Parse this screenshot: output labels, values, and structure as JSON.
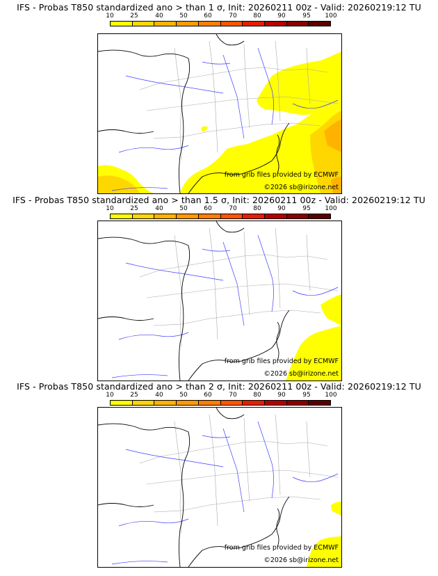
{
  "scale": {
    "labels": [
      "10",
      "25",
      "40",
      "50",
      "60",
      "70",
      "80",
      "90",
      "95",
      "100"
    ],
    "colors": [
      "#ffff00",
      "#ffd700",
      "#ffb300",
      "#ff9a00",
      "#ff7f00",
      "#ff5500",
      "#e61e00",
      "#b40000",
      "#8a0000",
      "#5a0000"
    ]
  },
  "map_colors": {
    "yellow": "#ffff00",
    "gold": "#ffd700",
    "orange": "#ffb300",
    "rivers": "#3d3dff",
    "borders": "#a9a9a9",
    "coast": "#000000"
  },
  "credits": {
    "source": "from grib files provided by ECMWF",
    "copyright": "©2026 sb@irizone.net"
  },
  "panels": [
    {
      "title": "IFS - Probas T850  standardized ano > than 1 σ, Init: 20260211 00z - Valid: 20260219:12 TU",
      "threshold_sigma": 1
    },
    {
      "title": "IFS - Probas T850  standardized ano > than 1.5 σ, Init: 20260211 00z - Valid: 20260219:12 TU",
      "threshold_sigma": 1.5
    },
    {
      "title": "IFS - Probas T850  standardized ano > than 2 σ, Init: 20260211 00z - Valid: 20260219:12 TU",
      "threshold_sigma": 2
    }
  ]
}
